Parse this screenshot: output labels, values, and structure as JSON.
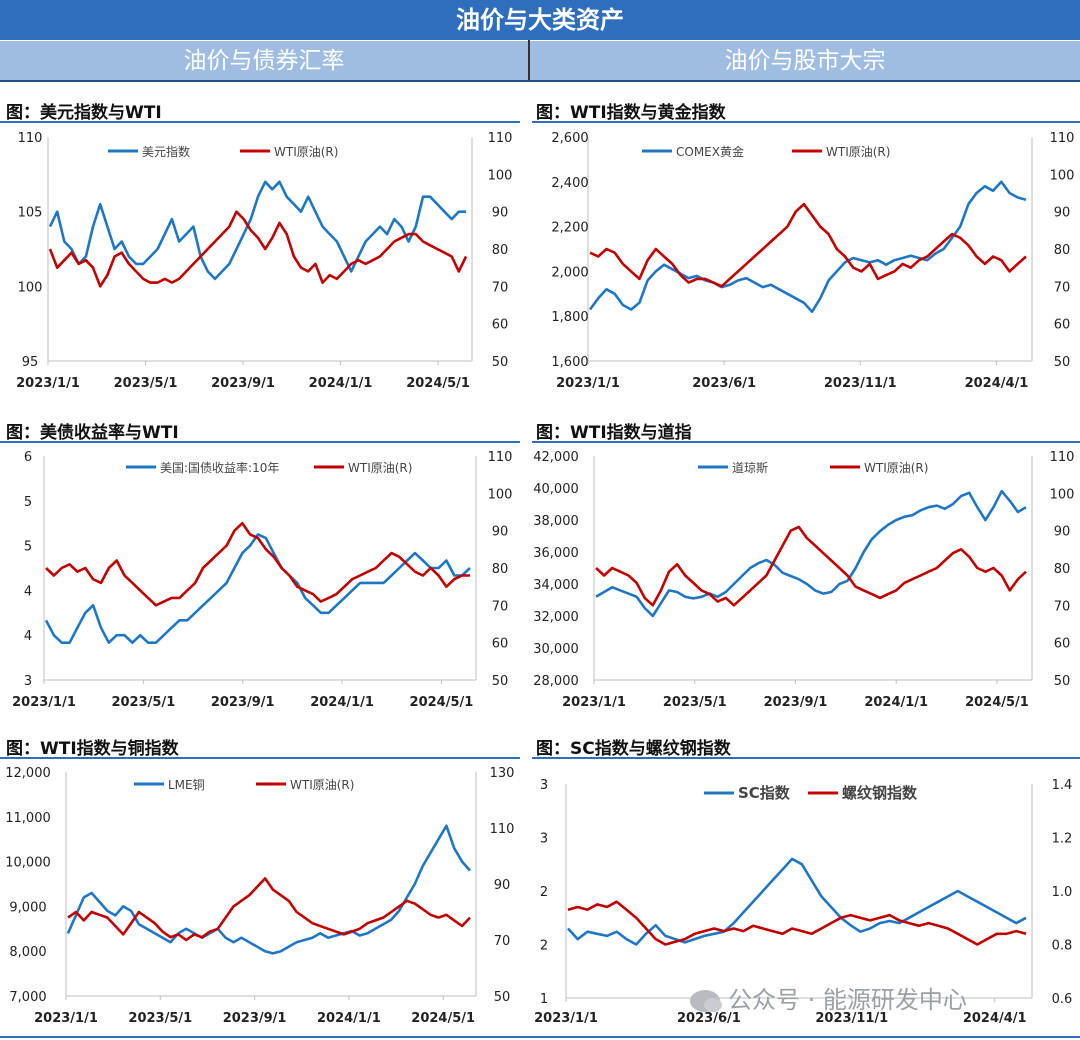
{
  "header": {
    "title": "油价与大类资产",
    "left_section": "油价与债券汇率",
    "right_section": "油价与股市大宗"
  },
  "watermark": "公众号 · 能源研发中心",
  "colors": {
    "blue": "#1f77c4",
    "red": "#c00000",
    "axis": "#bfbfbf"
  },
  "chart_data": [
    {
      "id": "c1",
      "type": "line",
      "title": "图：美元指数与WTI",
      "x_ticks": [
        "2023/1/1",
        "2023/5/1",
        "2023/9/1",
        "2024/1/1",
        "2024/5/1"
      ],
      "y_left": {
        "ticks": [
          "95",
          "100",
          "105",
          "110"
        ],
        "min": 95,
        "max": 110
      },
      "y_right": {
        "ticks": [
          "50",
          "60",
          "70",
          "80",
          "90",
          "100",
          "110"
        ],
        "min": 50,
        "max": 110
      },
      "legend": [
        "美元指数",
        "WTI原油(R)"
      ],
      "series": [
        {
          "name": "美元指数",
          "axis": "left",
          "color": "#1f77c4",
          "values": [
            104,
            105,
            103,
            102.5,
            101.5,
            102,
            104,
            105.5,
            104,
            102.5,
            103,
            102,
            101.5,
            101.5,
            102,
            102.5,
            103.5,
            104.5,
            103,
            103.5,
            104,
            102,
            101,
            100.5,
            101,
            101.5,
            102.5,
            103.5,
            104.5,
            106,
            107,
            106.5,
            107,
            106,
            105.5,
            105,
            106,
            105,
            104,
            103.5,
            103,
            102,
            101,
            102,
            103,
            103.5,
            104,
            103.5,
            104.5,
            104,
            103,
            104,
            106,
            106,
            105.5,
            105,
            104.5,
            105,
            105
          ]
        },
        {
          "name": "WTI原油(R)",
          "axis": "right",
          "color": "#c00000",
          "values": [
            80,
            75,
            77,
            79,
            76,
            77,
            75,
            70,
            73,
            78,
            79,
            76,
            74,
            72,
            71,
            71,
            72,
            71,
            72,
            74,
            76,
            78,
            80,
            82,
            84,
            86,
            90,
            88,
            85,
            83,
            80,
            83,
            87,
            84,
            78,
            75,
            74,
            76,
            71,
            73,
            72,
            74,
            76,
            77,
            76,
            77,
            78,
            80,
            82,
            83,
            84,
            84,
            82,
            81,
            80,
            79,
            78,
            74,
            78
          ]
        }
      ]
    },
    {
      "id": "c2",
      "type": "line",
      "title": "图：WTI指数与黄金指数",
      "x_ticks": [
        "2023/1/1",
        "2023/6/1",
        "2023/11/1",
        "2024/4/1"
      ],
      "y_left": {
        "ticks": [
          "1,600",
          "1,800",
          "2,000",
          "2,200",
          "2,400",
          "2,600"
        ],
        "min": 1600,
        "max": 2600
      },
      "y_right": {
        "ticks": [
          "50",
          "60",
          "70",
          "80",
          "90",
          "100",
          "110"
        ],
        "min": 50,
        "max": 110
      },
      "legend": [
        "COMEX黄金",
        "WTI原油(R)"
      ],
      "series": [
        {
          "name": "COMEX黄金",
          "axis": "left",
          "color": "#1f77c4",
          "values": [
            1830,
            1880,
            1920,
            1900,
            1850,
            1830,
            1860,
            1960,
            2000,
            2030,
            2010,
            1990,
            1970,
            1980,
            1960,
            1950,
            1930,
            1940,
            1960,
            1970,
            1950,
            1930,
            1940,
            1920,
            1900,
            1880,
            1860,
            1820,
            1880,
            1960,
            2000,
            2040,
            2060,
            2050,
            2040,
            2050,
            2030,
            2050,
            2060,
            2070,
            2060,
            2050,
            2080,
            2100,
            2150,
            2200,
            2300,
            2350,
            2380,
            2360,
            2400,
            2350,
            2330,
            2320
          ]
        },
        {
          "name": "WTI原油(R)",
          "axis": "right",
          "color": "#c00000",
          "values": [
            79,
            78,
            80,
            79,
            76,
            74,
            72,
            77,
            80,
            78,
            76,
            73,
            71,
            72,
            72,
            71,
            70,
            72,
            74,
            76,
            78,
            80,
            82,
            84,
            86,
            90,
            92,
            89,
            86,
            84,
            80,
            78,
            75,
            74,
            76,
            72,
            73,
            74,
            76,
            75,
            77,
            78,
            80,
            82,
            84,
            83,
            81,
            78,
            76,
            78,
            77,
            74,
            76,
            78
          ]
        }
      ]
    },
    {
      "id": "c3",
      "type": "line",
      "title": "图：美债收益率与WTI",
      "x_ticks": [
        "2023/1/1",
        "2023/5/1",
        "2023/9/1",
        "2024/1/1",
        "2024/5/1"
      ],
      "y_left": {
        "ticks": [
          "3",
          "4",
          "4",
          "5",
          "5",
          "6"
        ],
        "min": 3,
        "max": 6
      },
      "y_right": {
        "ticks": [
          "50",
          "60",
          "70",
          "80",
          "90",
          "100",
          "110"
        ],
        "min": 50,
        "max": 110
      },
      "legend": [
        "美国:国债收益率:10年",
        "WTI原油(R)"
      ],
      "series": [
        {
          "name": "美国:国债收益率:10年",
          "axis": "left",
          "color": "#1f77c4",
          "values": [
            3.8,
            3.6,
            3.5,
            3.5,
            3.7,
            3.9,
            4.0,
            3.7,
            3.5,
            3.6,
            3.6,
            3.5,
            3.6,
            3.5,
            3.5,
            3.6,
            3.7,
            3.8,
            3.8,
            3.9,
            4.0,
            4.1,
            4.2,
            4.3,
            4.5,
            4.7,
            4.8,
            4.95,
            4.9,
            4.7,
            4.5,
            4.4,
            4.3,
            4.1,
            4.0,
            3.9,
            3.9,
            4.0,
            4.1,
            4.2,
            4.3,
            4.3,
            4.3,
            4.3,
            4.4,
            4.5,
            4.6,
            4.7,
            4.6,
            4.5,
            4.5,
            4.6,
            4.4,
            4.4,
            4.5
          ]
        },
        {
          "name": "WTI原油(R)",
          "axis": "right",
          "color": "#c00000",
          "values": [
            80,
            78,
            80,
            81,
            79,
            80,
            77,
            76,
            80,
            82,
            78,
            76,
            74,
            72,
            70,
            71,
            72,
            72,
            74,
            76,
            80,
            82,
            84,
            86,
            90,
            92,
            89,
            88,
            85,
            83,
            80,
            78,
            75,
            74,
            73,
            71,
            72,
            73,
            75,
            77,
            78,
            79,
            80,
            82,
            84,
            83,
            81,
            79,
            78,
            80,
            78,
            75,
            77,
            78,
            78
          ]
        }
      ]
    },
    {
      "id": "c4",
      "type": "line",
      "title": "图：WTI指数与道指",
      "x_ticks": [
        "2023/1/1",
        "2023/5/1",
        "2023/9/1",
        "2024/1/1",
        "2024/5/1"
      ],
      "y_left": {
        "ticks": [
          "28,000",
          "30,000",
          "32,000",
          "34,000",
          "36,000",
          "38,000",
          "40,000",
          "42,000"
        ],
        "min": 28000,
        "max": 42000
      },
      "y_right": {
        "ticks": [
          "50",
          "60",
          "70",
          "80",
          "90",
          "100",
          "110"
        ],
        "min": 50,
        "max": 110
      },
      "legend": [
        "道琼斯",
        "WTI原油(R)"
      ],
      "series": [
        {
          "name": "道琼斯",
          "axis": "left",
          "color": "#1f77c4",
          "values": [
            33200,
            33500,
            33800,
            33600,
            33400,
            33200,
            32500,
            32000,
            32800,
            33600,
            33500,
            33200,
            33100,
            33200,
            33400,
            33200,
            33500,
            34000,
            34500,
            35000,
            35300,
            35500,
            35200,
            34700,
            34500,
            34300,
            34000,
            33600,
            33400,
            33500,
            34000,
            34200,
            35000,
            36000,
            36800,
            37300,
            37700,
            38000,
            38200,
            38300,
            38600,
            38800,
            38900,
            38700,
            39000,
            39500,
            39700,
            38800,
            38000,
            38800,
            39800,
            39200,
            38500,
            38800
          ]
        },
        {
          "name": "WTI原油(R)",
          "axis": "right",
          "color": "#c00000",
          "values": [
            80,
            78,
            80,
            79,
            78,
            76,
            72,
            70,
            74,
            79,
            81,
            78,
            76,
            74,
            73,
            71,
            72,
            70,
            72,
            74,
            76,
            78,
            82,
            86,
            90,
            91,
            88,
            86,
            84,
            82,
            80,
            78,
            75,
            74,
            73,
            72,
            73,
            74,
            76,
            77,
            78,
            79,
            80,
            82,
            84,
            85,
            83,
            80,
            79,
            80,
            78,
            74,
            77,
            79
          ]
        }
      ]
    },
    {
      "id": "c5",
      "type": "line",
      "title": "图：WTI指数与铜指数",
      "x_ticks": [
        "2023/1/1",
        "2023/5/1",
        "2023/9/1",
        "2024/1/1",
        "2024/5/1"
      ],
      "y_left": {
        "ticks": [
          "7,000",
          "8,000",
          "9,000",
          "10,000",
          "11,000",
          "12,000"
        ],
        "min": 7000,
        "max": 12000
      },
      "y_right": {
        "ticks": [
          "50",
          "70",
          "90",
          "110",
          "130"
        ],
        "min": 50,
        "max": 130
      },
      "legend": [
        "LME铜",
        "WTI原油(R)"
      ],
      "series": [
        {
          "name": "LME铜",
          "axis": "left",
          "color": "#1f77c4",
          "values": [
            8400,
            8800,
            9200,
            9300,
            9100,
            8900,
            8800,
            9000,
            8900,
            8600,
            8500,
            8400,
            8300,
            8200,
            8400,
            8500,
            8400,
            8300,
            8400,
            8500,
            8300,
            8200,
            8300,
            8200,
            8100,
            8000,
            7950,
            8000,
            8100,
            8200,
            8250,
            8300,
            8400,
            8300,
            8350,
            8400,
            8450,
            8350,
            8400,
            8500,
            8600,
            8700,
            8900,
            9200,
            9500,
            9900,
            10200,
            10500,
            10800,
            10300,
            10000,
            9800
          ]
        },
        {
          "name": "WTI原油(R)",
          "axis": "right",
          "color": "#c00000",
          "values": [
            78,
            80,
            77,
            80,
            79,
            78,
            75,
            72,
            76,
            80,
            78,
            76,
            73,
            71,
            72,
            70,
            72,
            71,
            73,
            74,
            78,
            82,
            84,
            86,
            89,
            92,
            88,
            86,
            84,
            80,
            78,
            76,
            75,
            74,
            73,
            72,
            73,
            74,
            76,
            77,
            78,
            80,
            82,
            84,
            83,
            81,
            79,
            78,
            79,
            77,
            75,
            78
          ]
        }
      ]
    },
    {
      "id": "c6",
      "type": "line",
      "title": "图：SC指数与螺纹钢指数",
      "x_ticks": [
        "2023/1/1",
        "2023/6/1",
        "2023/11/1",
        "2024/4/1"
      ],
      "y_left": {
        "ticks": [
          "1",
          "2",
          "2",
          "3",
          "3"
        ],
        "min": 1,
        "max": 3
      },
      "y_right": {
        "ticks": [
          "0.6",
          "0.8",
          "1.0",
          "1.2",
          "1.4"
        ],
        "min": 0.6,
        "max": 1.4
      },
      "legend": [
        "SC指数",
        "螺纹钢指数"
      ],
      "series": [
        {
          "name": "SC指数",
          "axis": "left",
          "color": "#1f77c4",
          "values": [
            1.65,
            1.55,
            1.62,
            1.6,
            1.58,
            1.62,
            1.55,
            1.5,
            1.6,
            1.68,
            1.58,
            1.55,
            1.52,
            1.55,
            1.58,
            1.6,
            1.62,
            1.7,
            1.8,
            1.9,
            2.0,
            2.1,
            2.2,
            2.3,
            2.25,
            2.1,
            1.95,
            1.85,
            1.75,
            1.68,
            1.62,
            1.65,
            1.7,
            1.72,
            1.7,
            1.75,
            1.8,
            1.85,
            1.9,
            1.95,
            2.0,
            1.95,
            1.9,
            1.85,
            1.8,
            1.75,
            1.7,
            1.75
          ]
        },
        {
          "name": "螺纹钢指数",
          "axis": "right",
          "color": "#c00000",
          "values": [
            0.93,
            0.94,
            0.93,
            0.95,
            0.94,
            0.96,
            0.93,
            0.9,
            0.86,
            0.82,
            0.8,
            0.81,
            0.82,
            0.84,
            0.85,
            0.86,
            0.85,
            0.86,
            0.85,
            0.87,
            0.86,
            0.85,
            0.84,
            0.86,
            0.85,
            0.84,
            0.86,
            0.88,
            0.9,
            0.91,
            0.9,
            0.89,
            0.9,
            0.91,
            0.89,
            0.88,
            0.87,
            0.88,
            0.87,
            0.86,
            0.84,
            0.82,
            0.8,
            0.82,
            0.84,
            0.84,
            0.85,
            0.84
          ]
        }
      ]
    }
  ]
}
